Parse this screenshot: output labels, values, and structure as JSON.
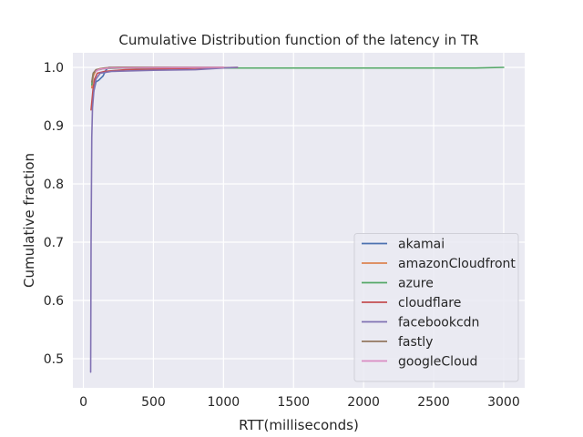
{
  "chart_data": {
    "type": "line",
    "title": "Cumulative Distribution function of the latency in TR",
    "xlabel": "RTT(milliseconds)",
    "ylabel": "Cumulative fraction",
    "xlim": [
      -75,
      3150
    ],
    "ylim": [
      0.45,
      1.025
    ],
    "xticks": [
      0,
      500,
      1000,
      1500,
      2000,
      2500,
      3000
    ],
    "yticks": [
      0.5,
      0.6,
      0.7,
      0.8,
      0.9,
      1.0
    ],
    "xtick_labels": [
      "0",
      "500",
      "1000",
      "1500",
      "2000",
      "2500",
      "3000"
    ],
    "ytick_labels": [
      "0.5",
      "0.6",
      "0.7",
      "0.8",
      "0.9",
      "1.0"
    ],
    "grid": true,
    "legend_position": "lower-right",
    "series": [
      {
        "name": "akamai",
        "color": "#4c72b0",
        "x": [
          60,
          70,
          90,
          110,
          140,
          160,
          180,
          200,
          1000
        ],
        "y": [
          0.93,
          0.955,
          0.975,
          0.978,
          0.985,
          0.995,
          1.0,
          1.0,
          1.0
        ]
      },
      {
        "name": "amazonCloudfront",
        "color": "#dd8452",
        "x": [
          60,
          70,
          90,
          120,
          200,
          1000
        ],
        "y": [
          0.965,
          0.985,
          0.995,
          0.998,
          1.0,
          1.0
        ]
      },
      {
        "name": "azure",
        "color": "#55a868",
        "x": [
          60,
          70,
          90,
          150,
          300,
          1000,
          2000,
          2800,
          3000
        ],
        "y": [
          0.97,
          0.99,
          0.995,
          0.998,
          0.999,
          0.999,
          0.999,
          0.999,
          1.0
        ]
      },
      {
        "name": "cloudflare",
        "color": "#c44e52",
        "x": [
          55,
          60,
          70,
          80,
          100,
          150,
          300,
          700,
          1100
        ],
        "y": [
          0.927,
          0.94,
          0.965,
          0.98,
          0.99,
          0.993,
          0.996,
          0.998,
          1.0
        ]
      },
      {
        "name": "facebookcdn",
        "color": "#8172b3",
        "x": [
          52,
          55,
          60,
          65,
          75,
          90,
          120,
          200,
          500,
          800,
          1000,
          1100
        ],
        "y": [
          0.477,
          0.7,
          0.88,
          0.93,
          0.96,
          0.98,
          0.99,
          0.993,
          0.995,
          0.996,
          0.999,
          1.0
        ]
      },
      {
        "name": "fastly",
        "color": "#937860",
        "x": [
          60,
          70,
          90,
          150,
          250,
          1000
        ],
        "y": [
          0.975,
          0.99,
          0.996,
          0.999,
          1.0,
          1.0
        ]
      },
      {
        "name": "googleCloud",
        "color": "#da8bc3",
        "x": [
          90,
          100,
          120,
          200,
          1000
        ],
        "y": [
          0.993,
          0.995,
          0.997,
          0.999,
          1.0
        ]
      }
    ]
  }
}
